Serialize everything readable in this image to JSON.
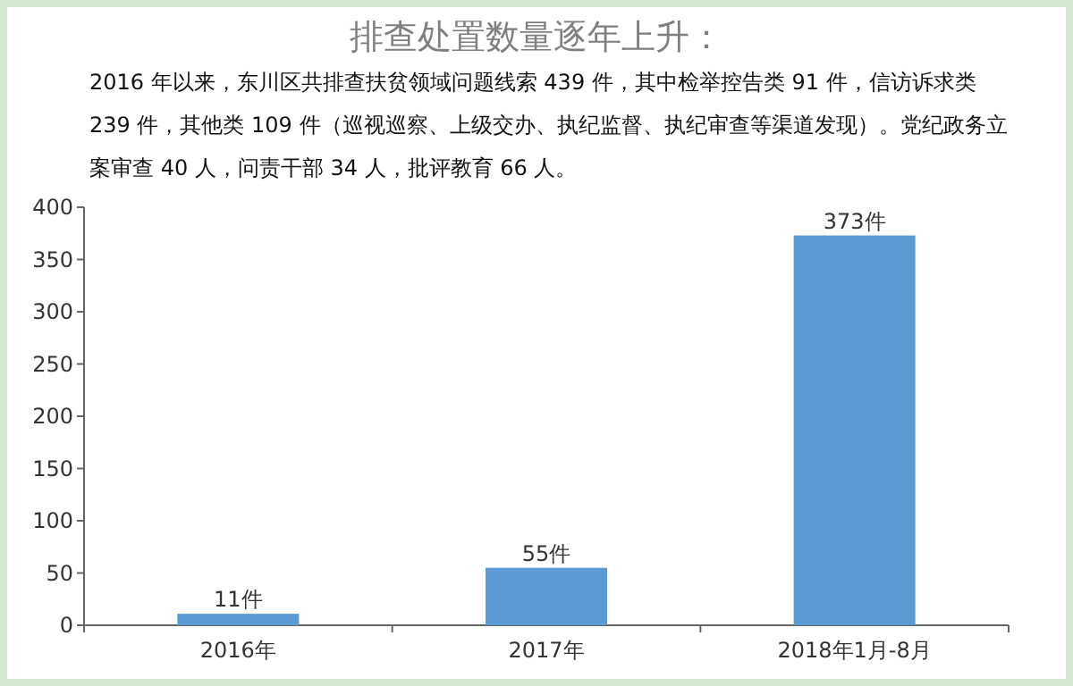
{
  "chart_data": {
    "type": "bar",
    "title": "排查处置数量逐年上升：",
    "subtitle": "2016 年以来，东川区共排查扶贫领域问题线索 439 件，其中检举控告类 91 件，信访诉求类 239 件，其他类 109 件（巡视巡察、上级交办、执纪监督、执纪审查等渠道发现）。党纪政务立案审查 40 人，问责干部 34 人，批评教育 66 人。",
    "categories": [
      "2016年",
      "2017年",
      "2018年1月-8月"
    ],
    "values": [
      11,
      55,
      373
    ],
    "value_labels": [
      "11件",
      "55件",
      "373件"
    ],
    "color": "#5b9bd5",
    "ylim": [
      0,
      400
    ],
    "yticks": [
      0,
      50,
      100,
      150,
      200,
      250,
      300,
      350,
      400
    ],
    "grid": false
  }
}
